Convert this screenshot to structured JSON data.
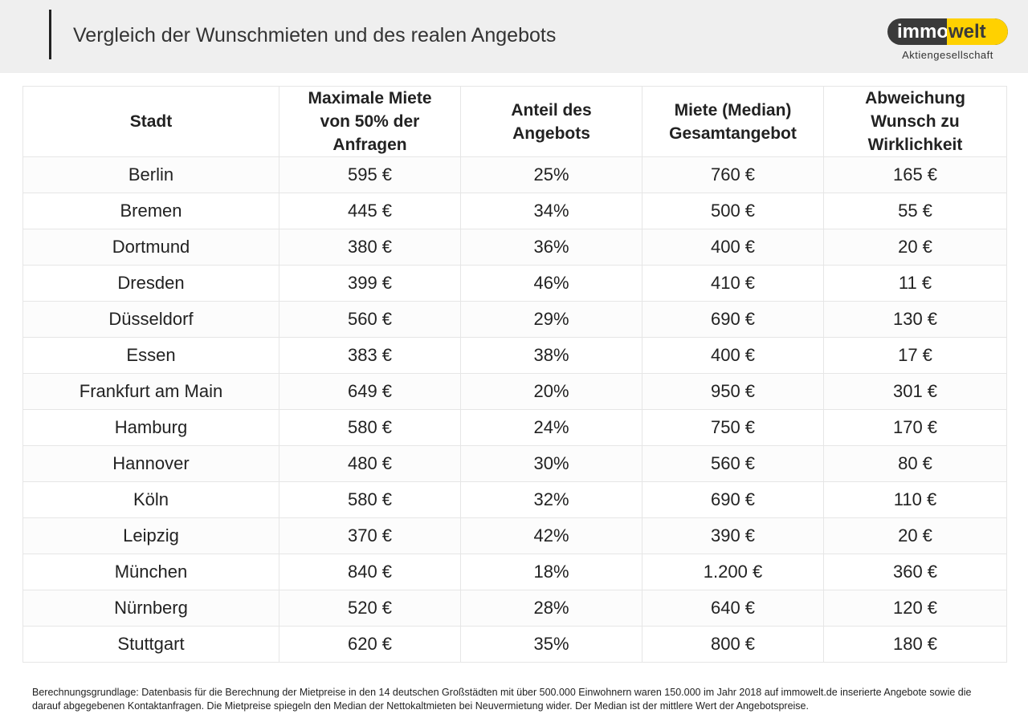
{
  "header": {
    "title": "Vergleich der Wunschmieten und des realen Angebots",
    "logo": {
      "part1": "immo",
      "part2": "welt",
      "subtitle": "Aktiengesellschaft"
    }
  },
  "table": {
    "header": [
      [
        "Stadt"
      ],
      [
        "Maximale Miete",
        "von 50% der",
        "Anfragen"
      ],
      [
        "Anteil des",
        "Angebots"
      ],
      [
        "Miete (Median)",
        "Gesamtangebot"
      ],
      [
        "Abweichung",
        "Wunsch zu",
        "Wirklichkeit"
      ]
    ],
    "rows": [
      [
        "Berlin",
        "595 €",
        "25%",
        "760 €",
        "165 €"
      ],
      [
        "Bremen",
        "445 €",
        "34%",
        "500 €",
        "55 €"
      ],
      [
        "Dortmund",
        "380 €",
        "36%",
        "400 €",
        "20 €"
      ],
      [
        "Dresden",
        "399 €",
        "46%",
        "410 €",
        "11 €"
      ],
      [
        "Düsseldorf",
        "560 €",
        "29%",
        "690 €",
        "130 €"
      ],
      [
        "Essen",
        "383 €",
        "38%",
        "400 €",
        "17 €"
      ],
      [
        "Frankfurt am Main",
        "649 €",
        "20%",
        "950 €",
        "301 €"
      ],
      [
        "Hamburg",
        "580 €",
        "24%",
        "750 €",
        "170 €"
      ],
      [
        "Hannover",
        "480 €",
        "30%",
        "560 €",
        "80 €"
      ],
      [
        "Köln",
        "580 €",
        "32%",
        "690 €",
        "110 €"
      ],
      [
        "Leipzig",
        "370 €",
        "42%",
        "390 €",
        "20 €"
      ],
      [
        "München",
        "840 €",
        "18%",
        "1.200 €",
        "360 €"
      ],
      [
        "Nürnberg",
        "520 €",
        "28%",
        "640 €",
        "120 €"
      ],
      [
        "Stuttgart",
        "620 €",
        "35%",
        "800 €",
        "180 €"
      ]
    ]
  },
  "footnote": "Berechnungsgrundlage: Datenbasis für die Berechnung der Mietpreise in den 14 deutschen Großstädten mit über 500.000 Einwohnern waren 150.000 im Jahr 2018 auf immowelt.de inserierte Angebote sowie die darauf abgegebenen Kontaktanfragen. Die Mietpreise spiegeln den Median der Nettokaltmieten bei Neuvermietung wider. Der Median ist der mittlere Wert der Angebotspreise."
}
